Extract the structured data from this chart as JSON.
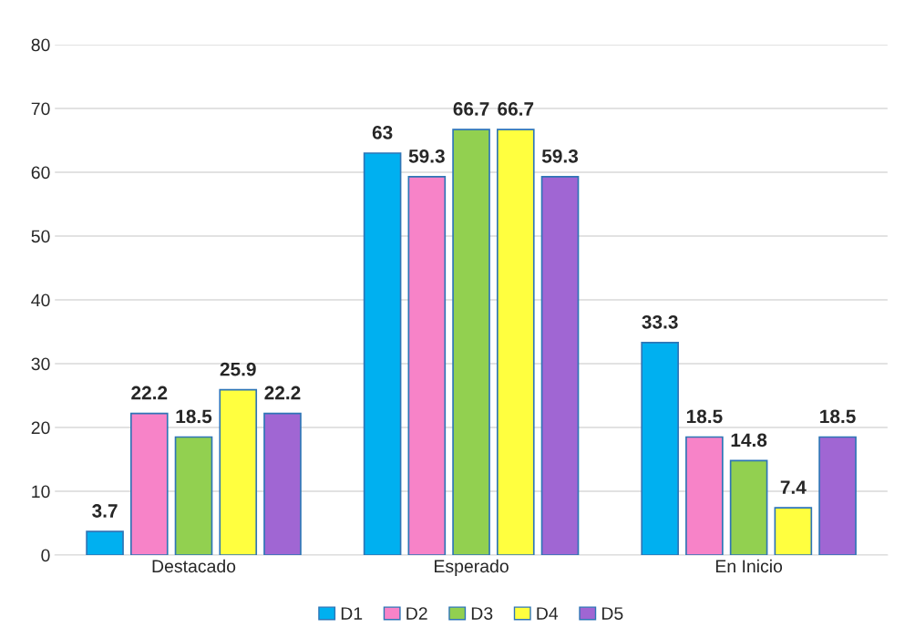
{
  "chart_data": {
    "type": "bar",
    "categories": [
      "Destacado",
      "Esperado",
      "En Inicio"
    ],
    "series": [
      {
        "name": "D1",
        "color": "#00b0f0",
        "values": [
          3.7,
          63,
          33.3
        ]
      },
      {
        "name": "D2",
        "color": "#f783c8",
        "values": [
          22.2,
          59.3,
          18.5
        ]
      },
      {
        "name": "D3",
        "color": "#92d050",
        "values": [
          18.5,
          66.7,
          14.8
        ]
      },
      {
        "name": "D4",
        "color": "#ffff3f",
        "values": [
          25.9,
          66.7,
          7.4
        ]
      },
      {
        "name": "D5",
        "color": "#a066d3",
        "values": [
          22.2,
          59.3,
          18.5
        ]
      }
    ],
    "ylim": [
      0,
      80
    ],
    "yticks": [
      0,
      10,
      20,
      30,
      40,
      50,
      60,
      70,
      80
    ],
    "grid": "y",
    "legend": "bottom",
    "data_labels": true
  }
}
